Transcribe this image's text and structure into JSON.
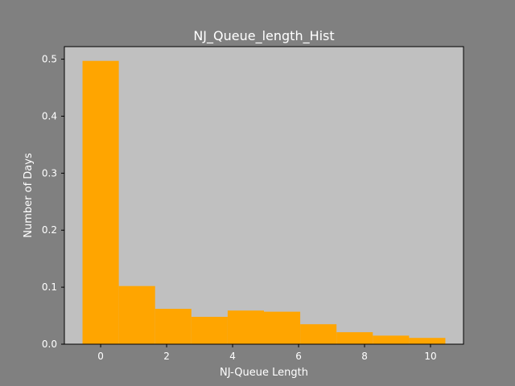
{
  "chart_data": {
    "type": "bar",
    "title": "NJ_Queue_length_Hist",
    "xlabel": "NJ-Queue Length",
    "ylabel": "Number of Days",
    "bins": [
      {
        "start": -0.55,
        "end": 0.55,
        "value": 0.497
      },
      {
        "start": 0.55,
        "end": 1.65,
        "value": 0.102
      },
      {
        "start": 1.65,
        "end": 2.75,
        "value": 0.062
      },
      {
        "start": 2.75,
        "end": 3.85,
        "value": 0.048
      },
      {
        "start": 3.85,
        "end": 4.95,
        "value": 0.059
      },
      {
        "start": 4.95,
        "end": 6.05,
        "value": 0.057
      },
      {
        "start": 6.05,
        "end": 7.15,
        "value": 0.035
      },
      {
        "start": 7.15,
        "end": 8.25,
        "value": 0.021
      },
      {
        "start": 8.25,
        "end": 9.35,
        "value": 0.015
      },
      {
        "start": 9.35,
        "end": 10.45,
        "value": 0.011
      }
    ],
    "xlim": [
      -1.1,
      11.0
    ],
    "ylim": [
      0,
      0.522
    ],
    "xticks": [
      0,
      2,
      4,
      6,
      8,
      10
    ],
    "yticks": [
      0.0,
      0.1,
      0.2,
      0.3,
      0.4,
      0.5
    ],
    "grid": false,
    "colors": {
      "bar": "#ffa500",
      "plot_background": "#c0c0c0",
      "figure_background": "#808080",
      "text": "#ffffff"
    }
  }
}
